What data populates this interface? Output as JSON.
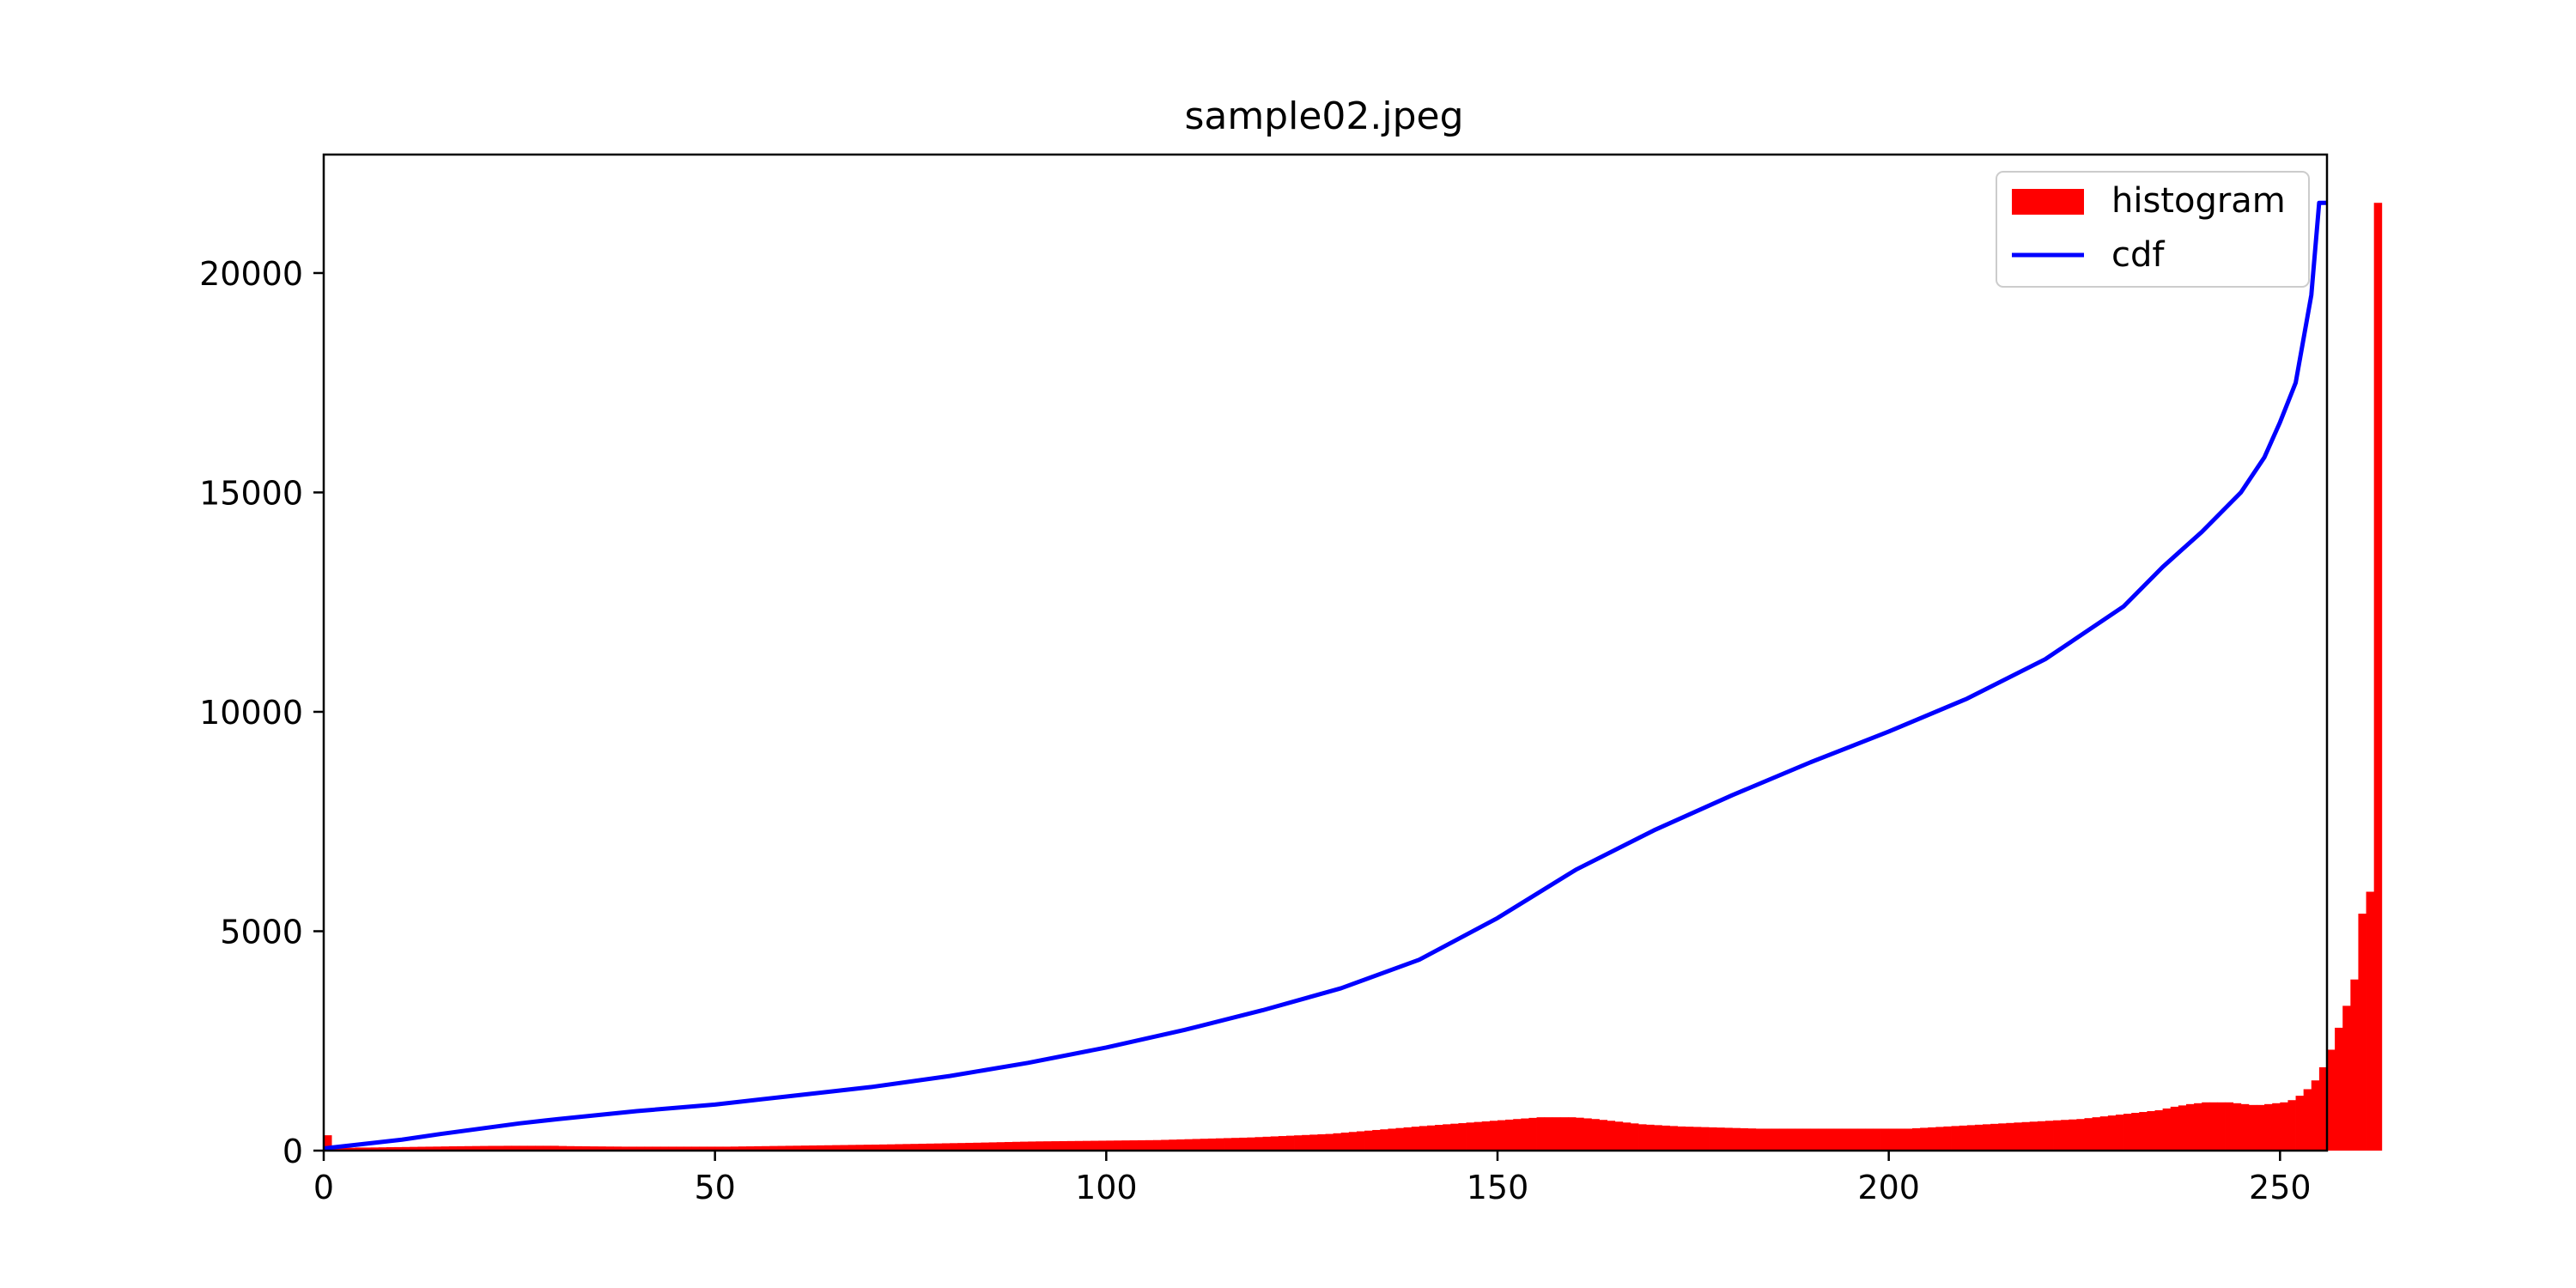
{
  "chart_data": {
    "type": "bar",
    "title": "sample02.jpeg",
    "xlabel": "",
    "ylabel": "",
    "xlim": [
      0,
      256
    ],
    "ylim": [
      0,
      22700
    ],
    "x_ticks": [
      0,
      50,
      100,
      150,
      200,
      250
    ],
    "y_ticks": [
      0,
      5000,
      10000,
      15000,
      20000
    ],
    "grid": false,
    "legend_position": "top-right",
    "series": [
      {
        "name": "histogram",
        "kind": "bar",
        "color": "#ff0000",
        "bin_start": 0,
        "bin_width": 1,
        "values": [
          350,
          60,
          60,
          65,
          70,
          70,
          72,
          75,
          78,
          80,
          82,
          85,
          88,
          90,
          92,
          95,
          98,
          100,
          102,
          104,
          106,
          108,
          108,
          110,
          110,
          110,
          110,
          110,
          110,
          110,
          105,
          102,
          100,
          98,
          96,
          95,
          93,
          92,
          90,
          90,
          90,
          90,
          90,
          90,
          90,
          90,
          90,
          90,
          90,
          90,
          90,
          90,
          92,
          95,
          97,
          100,
          102,
          105,
          107,
          110,
          112,
          115,
          117,
          120,
          122,
          125,
          127,
          130,
          132,
          135,
          137,
          140,
          143,
          147,
          150,
          153,
          157,
          160,
          163,
          167,
          170,
          173,
          177,
          180,
          184,
          188,
          192,
          196,
          200,
          204,
          207,
          210,
          212,
          214,
          216,
          218,
          220,
          222,
          224,
          226,
          228,
          230,
          232,
          234,
          236,
          238,
          240,
          245,
          250,
          255,
          260,
          265,
          270,
          275,
          280,
          285,
          290,
          295,
          300,
          308,
          316,
          324,
          332,
          340,
          348,
          356,
          364,
          372,
          380,
          395,
          410,
          425,
          440,
          455,
          470,
          485,
          500,
          515,
          530,
          545,
          560,
          573,
          586,
          600,
          613,
          626,
          640,
          653,
          666,
          680,
          693,
          706,
          720,
          733,
          746,
          760,
          760,
          760,
          760,
          760,
          750,
          735,
          720,
          700,
          680,
          660,
          640,
          620,
          600,
          590,
          580,
          570,
          560,
          550,
          545,
          540,
          535,
          530,
          525,
          520,
          515,
          510,
          505,
          500,
          500,
          500,
          500,
          500,
          500,
          500,
          500,
          500,
          500,
          500,
          500,
          500,
          500,
          500,
          500,
          500,
          500,
          500,
          500,
          510,
          520,
          530,
          540,
          550,
          560,
          570,
          580,
          590,
          600,
          610,
          620,
          630,
          640,
          650,
          660,
          670,
          680,
          690,
          700,
          710,
          720,
          740,
          760,
          780,
          800,
          820,
          840,
          860,
          880,
          900,
          920,
          960,
          1000,
          1030,
          1060,
          1080,
          1100,
          1100,
          1100,
          1100,
          1080,
          1060,
          1040,
          1040,
          1060,
          1080,
          1100,
          1150,
          1250,
          1400,
          1600,
          1900,
          2300,
          2800,
          3300,
          3900,
          5400,
          5900,
          21600
        ]
      },
      {
        "name": "cdf",
        "kind": "line",
        "color": "#0000ff",
        "x": [
          0,
          5,
          10,
          15,
          20,
          25,
          30,
          40,
          50,
          60,
          70,
          80,
          90,
          100,
          110,
          120,
          130,
          140,
          150,
          160,
          170,
          180,
          190,
          200,
          210,
          220,
          230,
          235,
          240,
          245,
          248,
          250,
          252,
          253,
          254,
          255,
          256
        ],
        "y": [
          50,
          150,
          250,
          380,
          500,
          620,
          720,
          900,
          1050,
          1250,
          1450,
          1700,
          2000,
          2350,
          2750,
          3200,
          3700,
          4350,
          5300,
          6400,
          7300,
          8100,
          8850,
          9550,
          10300,
          11200,
          12400,
          13300,
          14100,
          15000,
          15800,
          16600,
          17500,
          18500,
          19500,
          21600,
          21600
        ]
      }
    ]
  }
}
